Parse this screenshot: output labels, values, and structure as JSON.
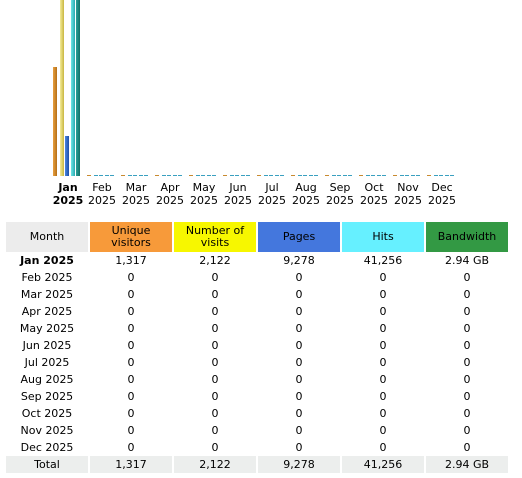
{
  "colors": {
    "unique_visitors": "#f79a3a",
    "visits": "#f7f700",
    "pages": "#4477dd",
    "hits": "#66f0ff",
    "bandwidth": "#339944",
    "header_bg": "#ececec",
    "total_bg": "#eceeed"
  },
  "chart_data": {
    "type": "bar",
    "categories": [
      [
        "Jan",
        "2025"
      ],
      [
        "Feb",
        "2025"
      ],
      [
        "Mar",
        "2025"
      ],
      [
        "Apr",
        "2025"
      ],
      [
        "May",
        "2025"
      ],
      [
        "Jun",
        "2025"
      ],
      [
        "Jul",
        "2025"
      ],
      [
        "Aug",
        "2025"
      ],
      [
        "Sep",
        "2025"
      ],
      [
        "Oct",
        "2025"
      ],
      [
        "Nov",
        "2025"
      ],
      [
        "Dec",
        "2025"
      ]
    ],
    "current_index": 0,
    "series": [
      {
        "key": "unique_visitors",
        "values": [
          1317,
          0,
          0,
          0,
          0,
          0,
          0,
          0,
          0,
          0,
          0,
          0
        ],
        "max": 2122
      },
      {
        "key": "visits",
        "values": [
          2122,
          0,
          0,
          0,
          0,
          0,
          0,
          0,
          0,
          0,
          0,
          0
        ],
        "max": 2122
      },
      {
        "key": "pages",
        "values": [
          9278,
          0,
          0,
          0,
          0,
          0,
          0,
          0,
          0,
          0,
          0,
          0
        ],
        "max": 41256
      },
      {
        "key": "hits",
        "values": [
          41256,
          0,
          0,
          0,
          0,
          0,
          0,
          0,
          0,
          0,
          0,
          0
        ],
        "max": 41256
      },
      {
        "key": "bandwidth",
        "values": [
          2.94,
          0,
          0,
          0,
          0,
          0,
          0,
          0,
          0,
          0,
          0,
          0
        ],
        "max": 2.94
      }
    ],
    "grid": false,
    "legend": "none"
  },
  "table": {
    "headers": {
      "month": "Month",
      "unique_visitors": [
        "Unique",
        "visitors"
      ],
      "visits": [
        "Number of",
        "visits"
      ],
      "pages": "Pages",
      "hits": "Hits",
      "bandwidth": "Bandwidth"
    },
    "rows": [
      {
        "month": "Jan 2025",
        "unique": "1,317",
        "visits": "2,122",
        "pages": "9,278",
        "hits": "41,256",
        "bandwidth": "2.94 GB"
      },
      {
        "month": "Feb 2025",
        "unique": "0",
        "visits": "0",
        "pages": "0",
        "hits": "0",
        "bandwidth": "0"
      },
      {
        "month": "Mar 2025",
        "unique": "0",
        "visits": "0",
        "pages": "0",
        "hits": "0",
        "bandwidth": "0"
      },
      {
        "month": "Apr 2025",
        "unique": "0",
        "visits": "0",
        "pages": "0",
        "hits": "0",
        "bandwidth": "0"
      },
      {
        "month": "May 2025",
        "unique": "0",
        "visits": "0",
        "pages": "0",
        "hits": "0",
        "bandwidth": "0"
      },
      {
        "month": "Jun 2025",
        "unique": "0",
        "visits": "0",
        "pages": "0",
        "hits": "0",
        "bandwidth": "0"
      },
      {
        "month": "Jul 2025",
        "unique": "0",
        "visits": "0",
        "pages": "0",
        "hits": "0",
        "bandwidth": "0"
      },
      {
        "month": "Aug 2025",
        "unique": "0",
        "visits": "0",
        "pages": "0",
        "hits": "0",
        "bandwidth": "0"
      },
      {
        "month": "Sep 2025",
        "unique": "0",
        "visits": "0",
        "pages": "0",
        "hits": "0",
        "bandwidth": "0"
      },
      {
        "month": "Oct 2025",
        "unique": "0",
        "visits": "0",
        "pages": "0",
        "hits": "0",
        "bandwidth": "0"
      },
      {
        "month": "Nov 2025",
        "unique": "0",
        "visits": "0",
        "pages": "0",
        "hits": "0",
        "bandwidth": "0"
      },
      {
        "month": "Dec 2025",
        "unique": "0",
        "visits": "0",
        "pages": "0",
        "hits": "0",
        "bandwidth": "0"
      }
    ],
    "total": {
      "month": "Total",
      "unique": "1,317",
      "visits": "2,122",
      "pages": "9,278",
      "hits": "41,256",
      "bandwidth": "2.94 GB"
    }
  }
}
